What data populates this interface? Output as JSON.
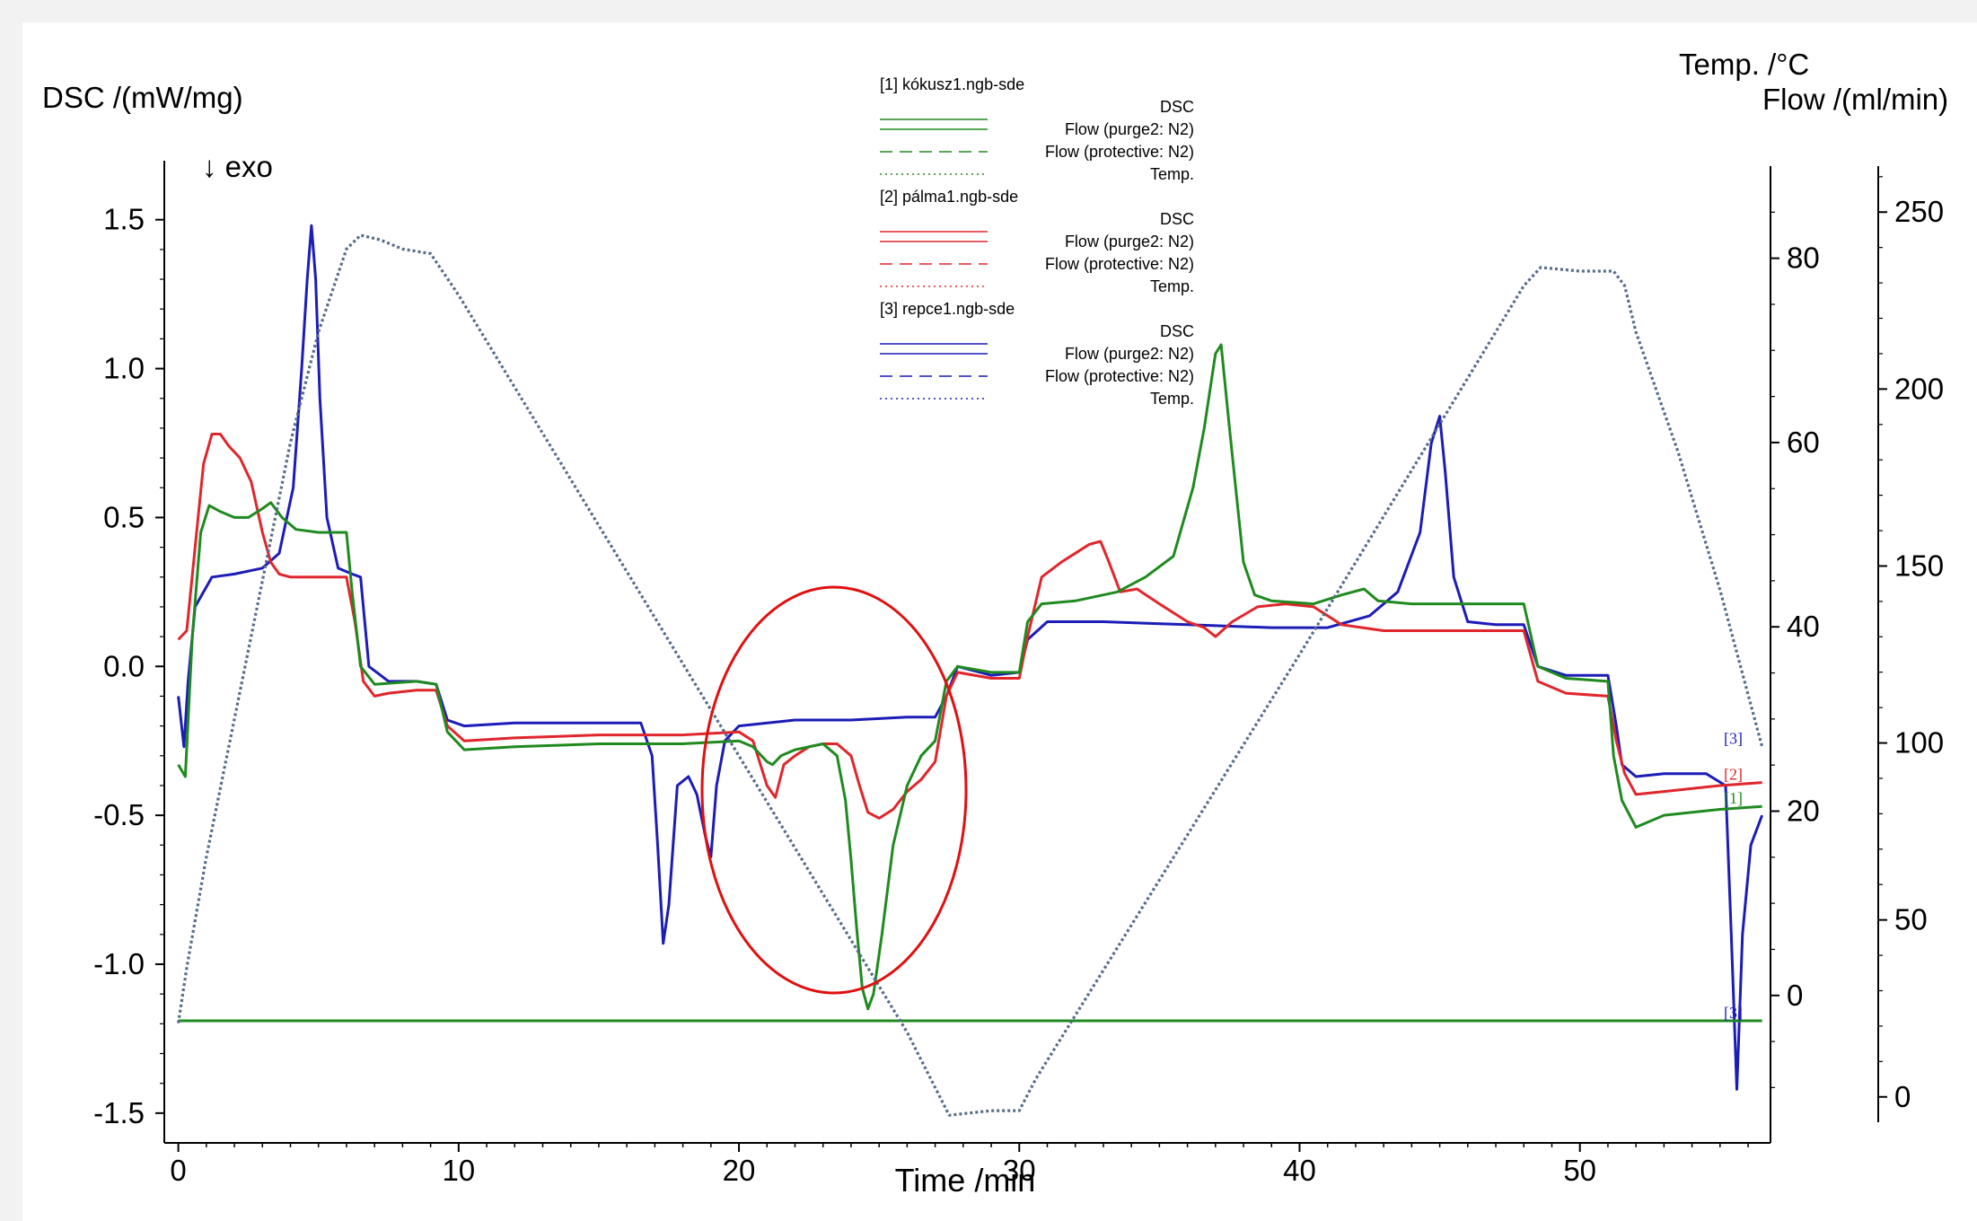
{
  "chart_data": {
    "type": "line",
    "xlabel": "Time /min",
    "ylabel_left": "DSC /(mW/mg)",
    "ylabel_right_1": "Temp. /°C",
    "ylabel_right_2": "Flow /(ml/min)",
    "exo_label": "↓ exo",
    "xlim": [
      -0.5,
      56.8
    ],
    "ylim_left": [
      -1.6,
      1.68
    ],
    "ylim_temp": [
      -16,
      90
    ],
    "ylim_flow": [
      -13,
      263
    ],
    "x_ticks": [
      0,
      10,
      20,
      30,
      40,
      50
    ],
    "y_left_ticks": [
      1.5,
      1.0,
      0.5,
      0.0,
      -0.5,
      -1.0,
      -1.5
    ],
    "y_left_tick_labels": [
      "1.5",
      "1.0",
      "0.5",
      "0.0",
      "-0.5",
      "-1.0",
      "-1.5"
    ],
    "y_temp_ticks": [
      80,
      60,
      40,
      20,
      0
    ],
    "y_flow_ticks": [
      250,
      200,
      150,
      100,
      50,
      0
    ],
    "legend": {
      "groups": [
        {
          "file": "[1]  kókusz1.ngb-sde",
          "color": "#1f8a1f",
          "entries": [
            "DSC",
            "Flow (purge2: N2)",
            "Flow (protective: N2)",
            "Temp."
          ]
        },
        {
          "file": "[2]  pálma1.ngb-sde",
          "color": "#e0262c",
          "entries": [
            "DSC",
            "Flow (purge2: N2)",
            "Flow (protective: N2)",
            "Temp."
          ]
        },
        {
          "file": "[3]  repce1.ngb-sde",
          "color": "#1c1cb8",
          "entries": [
            "DSC",
            "Flow (purge2: N2)",
            "Flow (protective: N2)",
            "Temp."
          ]
        }
      ]
    },
    "end_markers": [
      {
        "text": "[3]",
        "color": "#1c1cb8",
        "temp": 28
      },
      {
        "text": "[2]",
        "color": "#e0262c",
        "dsc": -0.36
      },
      {
        "text": "[1]",
        "color": "#1f8a1f",
        "dsc": -0.44
      },
      {
        "text": "[3]",
        "color": "#1c1cb8",
        "dsc": -1.16
      }
    ],
    "series": [
      {
        "name": "[3]  repce1.ngb-sde",
        "axis": "dsc",
        "color": "#1c1cb8",
        "x": [
          0,
          0.2,
          0.35,
          0.6,
          1.2,
          2,
          3,
          3.6,
          4.1,
          4.4,
          4.6,
          4.75,
          4.9,
          5.05,
          5.3,
          5.7,
          6.2,
          6.5,
          6.8,
          7.5,
          8.5,
          9.2,
          9.6,
          10.2,
          12,
          14,
          16.5,
          16.9,
          17.1,
          17.3,
          17.5,
          17.8,
          18.2,
          18.5,
          18.8,
          19,
          19.2,
          19.5,
          20,
          22,
          24,
          26,
          27,
          27.4,
          27.8,
          29,
          30,
          30.3,
          31,
          33,
          36,
          39,
          41,
          42.5,
          43.5,
          44.3,
          44.7,
          45,
          45.2,
          45.5,
          46,
          47,
          48,
          48.5,
          49.5,
          51,
          51.3,
          51.5,
          52,
          53,
          54.5,
          55.2,
          55.4,
          55.6,
          55.8,
          56.1,
          56.5
        ],
        "y": [
          -0.1,
          -0.27,
          -0.05,
          0.2,
          0.3,
          0.31,
          0.33,
          0.38,
          0.6,
          1.0,
          1.3,
          1.48,
          1.3,
          0.9,
          0.5,
          0.33,
          0.31,
          0.3,
          0.0,
          -0.05,
          -0.05,
          -0.06,
          -0.18,
          -0.2,
          -0.19,
          -0.19,
          -0.19,
          -0.3,
          -0.6,
          -0.93,
          -0.8,
          -0.4,
          -0.37,
          -0.43,
          -0.57,
          -0.64,
          -0.4,
          -0.25,
          -0.2,
          -0.18,
          -0.18,
          -0.17,
          -0.17,
          -0.1,
          0.0,
          -0.03,
          -0.02,
          0.09,
          0.15,
          0.15,
          0.14,
          0.13,
          0.13,
          0.17,
          0.25,
          0.45,
          0.75,
          0.84,
          0.65,
          0.3,
          0.15,
          0.14,
          0.14,
          0.0,
          -0.03,
          -0.03,
          -0.2,
          -0.33,
          -0.37,
          -0.36,
          -0.36,
          -0.4,
          -0.9,
          -1.42,
          -0.9,
          -0.6,
          -0.5
        ]
      },
      {
        "name": "[2]  pálma1.ngb-sde",
        "axis": "dsc",
        "color": "#e0262c",
        "x": [
          0,
          0.3,
          0.6,
          0.9,
          1.2,
          1.5,
          1.8,
          2.2,
          2.6,
          3,
          3.3,
          3.6,
          4,
          5,
          6,
          6.3,
          6.6,
          7,
          7.5,
          8.5,
          9.2,
          9.6,
          10.2,
          12,
          15,
          18,
          20,
          20.5,
          21,
          21.3,
          21.6,
          22,
          22.5,
          23,
          23.5,
          24,
          24.3,
          24.6,
          25,
          25.5,
          26,
          26.5,
          27,
          27.4,
          27.8,
          29,
          30,
          30.3,
          30.8,
          31.5,
          32.5,
          32.9,
          33.2,
          33.6,
          34.2,
          35,
          36,
          36.6,
          37,
          37.6,
          38.5,
          39.5,
          40.5,
          41.5,
          43,
          45,
          47,
          48,
          48.5,
          49.5,
          51,
          51.3,
          51.6,
          52,
          53,
          55,
          56.5
        ],
        "y": [
          0.09,
          0.12,
          0.4,
          0.68,
          0.78,
          0.78,
          0.74,
          0.7,
          0.62,
          0.45,
          0.35,
          0.31,
          0.3,
          0.3,
          0.3,
          0.15,
          -0.05,
          -0.1,
          -0.09,
          -0.08,
          -0.08,
          -0.2,
          -0.25,
          -0.24,
          -0.23,
          -0.23,
          -0.22,
          -0.25,
          -0.4,
          -0.44,
          -0.33,
          -0.3,
          -0.27,
          -0.26,
          -0.26,
          -0.3,
          -0.4,
          -0.49,
          -0.51,
          -0.48,
          -0.42,
          -0.38,
          -0.32,
          -0.1,
          -0.02,
          -0.04,
          -0.04,
          0.1,
          0.3,
          0.35,
          0.41,
          0.42,
          0.35,
          0.25,
          0.26,
          0.21,
          0.15,
          0.13,
          0.1,
          0.15,
          0.2,
          0.21,
          0.2,
          0.14,
          0.12,
          0.12,
          0.12,
          0.12,
          -0.05,
          -0.09,
          -0.1,
          -0.25,
          -0.36,
          -0.43,
          -0.42,
          -0.4,
          -0.39
        ]
      },
      {
        "name": "[1]  kókusz1.ngb-sde",
        "axis": "dsc",
        "color": "#1f8a1f",
        "x": [
          0,
          0.25,
          0.5,
          0.8,
          1.1,
          1.5,
          2,
          2.5,
          3,
          3.3,
          3.7,
          4.2,
          5,
          6,
          6.2,
          6.5,
          7,
          8.5,
          9.2,
          9.6,
          10.2,
          12,
          15,
          18,
          20,
          20.5,
          21,
          21.2,
          21.5,
          22,
          22.5,
          23,
          23.5,
          23.8,
          24,
          24.2,
          24.4,
          24.6,
          24.8,
          25.1,
          25.5,
          26,
          26.5,
          27,
          27.4,
          27.8,
          29,
          30,
          30.3,
          30.8,
          32,
          33.5,
          34.5,
          35.5,
          36.2,
          36.6,
          37,
          37.2,
          37.5,
          38,
          38.4,
          39,
          40.5,
          41.5,
          42.3,
          42.8,
          44,
          46,
          48,
          48.5,
          49.5,
          51,
          51.2,
          51.5,
          52,
          53,
          55,
          56.5
        ],
        "y": [
          -0.33,
          -0.37,
          0.1,
          0.45,
          0.54,
          0.52,
          0.5,
          0.5,
          0.53,
          0.55,
          0.5,
          0.46,
          0.45,
          0.45,
          0.25,
          0.0,
          -0.06,
          -0.05,
          -0.06,
          -0.22,
          -0.28,
          -0.27,
          -0.26,
          -0.26,
          -0.25,
          -0.27,
          -0.32,
          -0.33,
          -0.3,
          -0.28,
          -0.27,
          -0.26,
          -0.3,
          -0.45,
          -0.65,
          -0.88,
          -1.08,
          -1.15,
          -1.1,
          -0.9,
          -0.6,
          -0.4,
          -0.3,
          -0.25,
          -0.05,
          0.0,
          -0.02,
          -0.02,
          0.15,
          0.21,
          0.22,
          0.25,
          0.3,
          0.37,
          0.6,
          0.8,
          1.05,
          1.08,
          0.8,
          0.35,
          0.24,
          0.22,
          0.21,
          0.24,
          0.26,
          0.22,
          0.21,
          0.21,
          0.21,
          0.0,
          -0.04,
          -0.05,
          -0.3,
          -0.45,
          -0.54,
          -0.5,
          -0.48,
          -0.47
        ]
      },
      {
        "name": "[1]  kókusz1.ngb-sde",
        "axis": "dsc",
        "color": "#1f8a1f",
        "x": [
          0,
          56.5
        ],
        "y": [
          -1.19,
          -1.19
        ]
      },
      {
        "name": "Temp.",
        "axis": "temp",
        "color": "#556b8a",
        "dash": "3,3",
        "x": [
          0,
          0.3,
          1,
          2,
          3,
          4,
          5,
          6,
          6.5,
          7.2,
          8,
          9,
          10,
          15,
          20,
          25,
          26,
          27.5,
          29,
          30,
          30.6,
          40,
          45,
          48,
          48.6,
          50,
          51.2,
          51.6,
          52,
          53.5,
          55,
          56.5
        ],
        "y": [
          -3,
          3,
          15,
          30,
          45,
          60,
          72,
          81,
          82.5,
          82,
          81,
          80.5,
          76,
          51,
          26,
          1,
          -4,
          -13,
          -12.5,
          -12.5,
          -9,
          37,
          62,
          77,
          79,
          78.6,
          78.6,
          77,
          72,
          59,
          44,
          27
        ]
      }
    ]
  }
}
